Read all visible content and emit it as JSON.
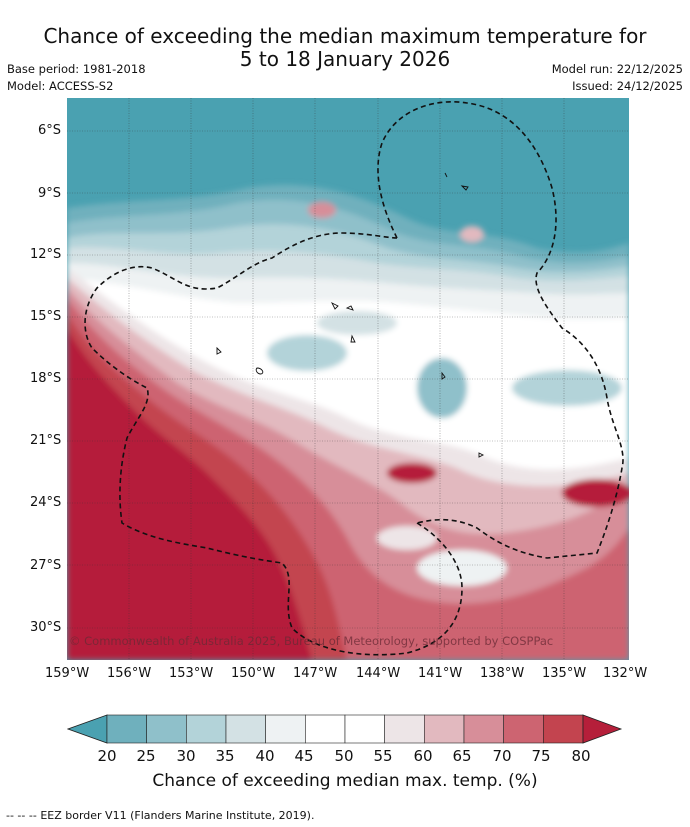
{
  "header": {
    "title_line1": "Chance of exceeding the median maximum temperature for",
    "title_line2": "5 to 18 January 2026",
    "base_period": "Base period: 1981-2018",
    "model": "Model: ACCESS-S2",
    "model_run": "Model run: 22/12/2025",
    "issued": "Issued: 24/12/2025"
  },
  "map": {
    "lat_labels": [
      "6°S",
      "9°S",
      "12°S",
      "15°S",
      "18°S",
      "21°S",
      "24°S",
      "27°S",
      "30°S"
    ],
    "lon_labels": [
      "159°W",
      "156°W",
      "153°W",
      "150°W",
      "147°W",
      "144°W",
      "141°W",
      "138°W",
      "135°W",
      "132°W"
    ],
    "copyright": "© Commonwealth of Australia 2025, Bureau of Meteorology, supported by COSPPac",
    "colors": {
      "low_teal": "#4aa1b1",
      "teal_25": "#6fb0bd",
      "teal_30": "#8fc0ca",
      "teal_35": "#b3d3d9",
      "grey_40": "#d3e1e4",
      "white_45": "#eef2f3",
      "white_50": "#ffffff",
      "pink_60": "#ede5e7",
      "pink_65": "#e2b9bf",
      "pink_70": "#d78e99",
      "red_75": "#cd6471",
      "red_80": "#c3444f",
      "deep_red": "#b51f3a"
    }
  },
  "colorbar": {
    "ticks": [
      "20",
      "25",
      "30",
      "35",
      "40",
      "45",
      "50",
      "55",
      "60",
      "65",
      "70",
      "75",
      "80"
    ],
    "title": "Chance of exceeding median max. temp. (%)",
    "bins": [
      "#6fb0bd",
      "#8fc0ca",
      "#b3d3d9",
      "#d3e1e4",
      "#eef2f3",
      "#ffffff",
      "#ffffff",
      "#ede5e7",
      "#e2b9bf",
      "#d78e99",
      "#cd6471",
      "#c3444f"
    ],
    "low_color": "#4aa1b1",
    "high_color": "#b51f3a"
  },
  "footer": {
    "legend_marker": "--  --  --",
    "legend_text": "EEZ border V11 (Flanders Marine Institute, 2019)."
  }
}
